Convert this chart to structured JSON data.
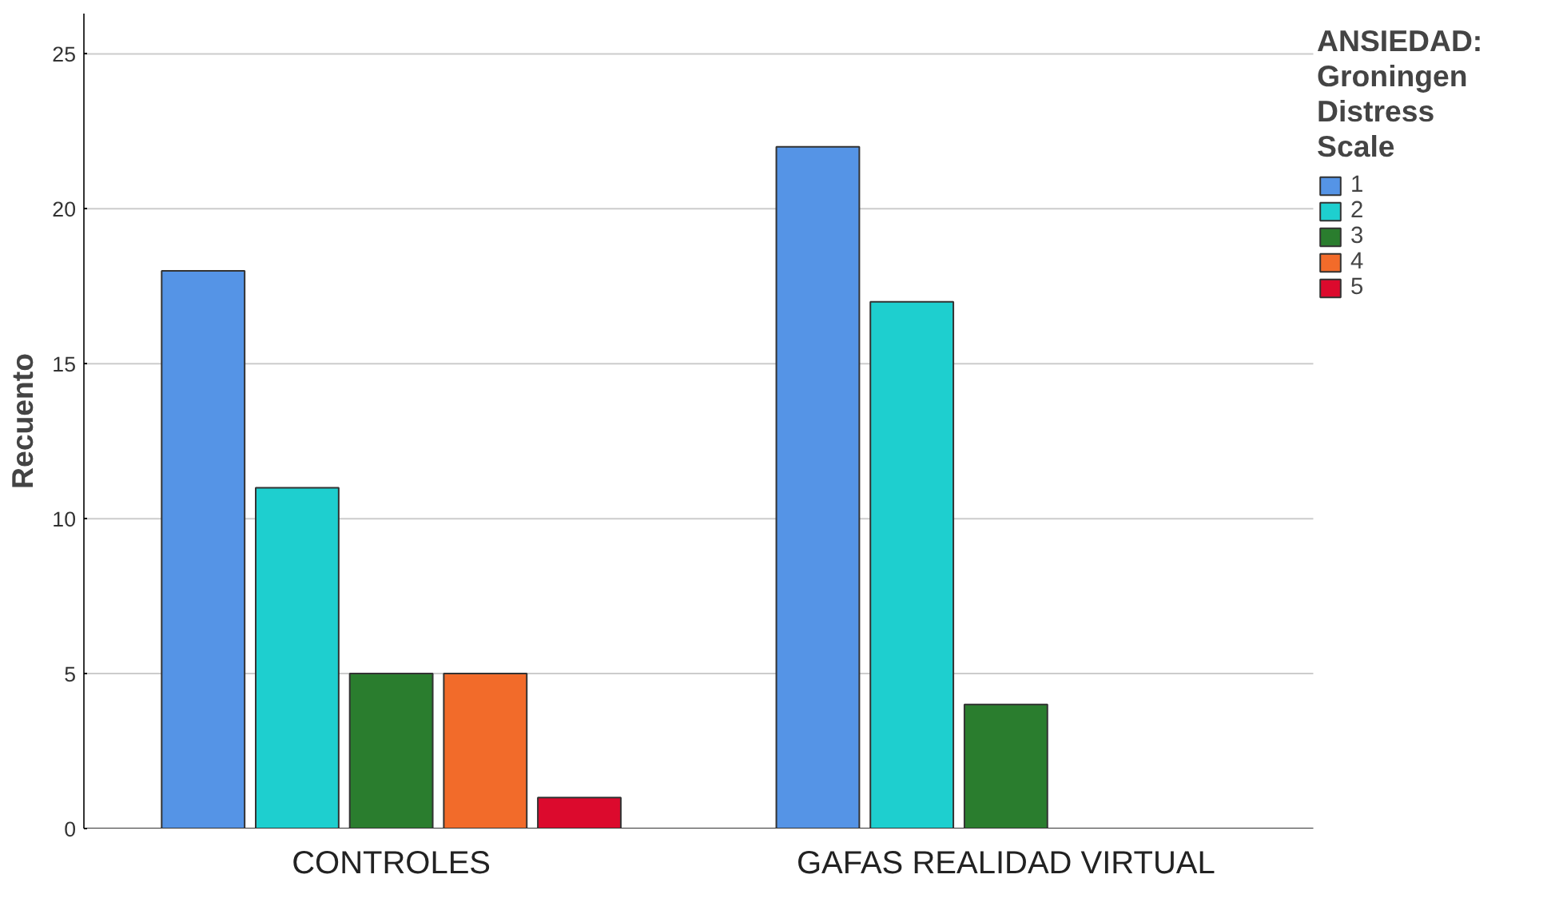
{
  "chart_data": {
    "type": "bar",
    "ylabel": "Recuento",
    "legend_title": "ANSIEDAD: Groningen Distress Scale",
    "categories": [
      "CONTROLES",
      "GAFAS REALIDAD VIRTUAL"
    ],
    "series": [
      {
        "name": "1",
        "color": "#5594e6",
        "values": [
          18,
          22
        ]
      },
      {
        "name": "2",
        "color": "#1ecfcf",
        "values": [
          11,
          17
        ]
      },
      {
        "name": "3",
        "color": "#2a7d2e",
        "values": [
          5,
          4
        ]
      },
      {
        "name": "4",
        "color": "#f26b2a",
        "values": [
          5,
          null
        ]
      },
      {
        "name": "5",
        "color": "#dc0a2d",
        "values": [
          1,
          null
        ]
      }
    ],
    "ylim": [
      0,
      26.3
    ],
    "yticks": [
      0,
      5,
      10,
      15,
      20,
      25
    ],
    "grid": "y",
    "legend": "top right"
  }
}
